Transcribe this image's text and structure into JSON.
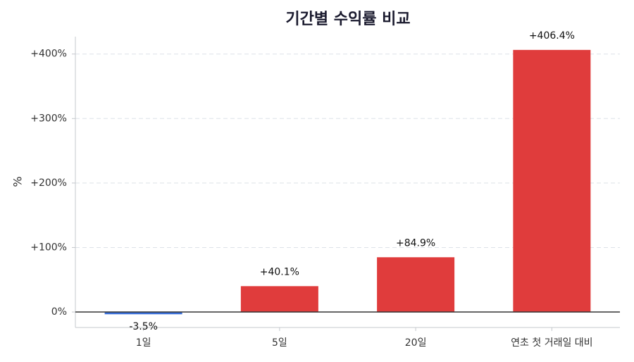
{
  "chart_data": {
    "type": "bar",
    "title": "기간별 수익률 비교",
    "y_label": "%",
    "categories": [
      "1일",
      "5일",
      "20일",
      "연초 첫 거래일 대비"
    ],
    "values": [
      -3.5,
      40.1,
      84.9,
      406.4
    ],
    "value_labels": [
      "-3.5%",
      "+40.1%",
      "+84.9%",
      "+406.4%"
    ],
    "colors": [
      "#3a6fd8",
      "#e03c3c",
      "#e03c3c",
      "#e03c3c"
    ],
    "ylim": [
      -24,
      427
    ],
    "yticks": [
      {
        "value": 0,
        "label": "0%"
      },
      {
        "value": 100,
        "label": "+100%"
      },
      {
        "value": 200,
        "label": "+200%"
      },
      {
        "value": 300,
        "label": "+300%"
      },
      {
        "value": 400,
        "label": "+400%"
      }
    ],
    "grid": true
  }
}
